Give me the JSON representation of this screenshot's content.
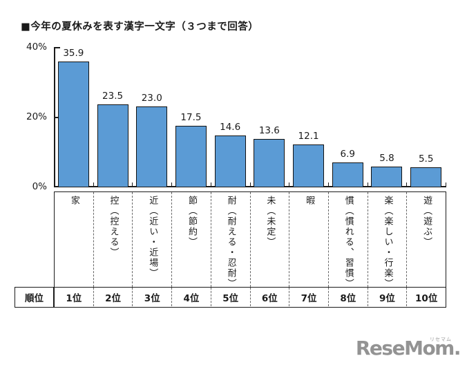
{
  "title": "■今年の夏休みを表す漢字一文字（３つまで回答）",
  "chart_data": {
    "type": "bar",
    "title": "今年の夏休みを表す漢字一文字（３つまで回答）",
    "categories": [
      "家",
      "控（控える）",
      "近（近い・近場）",
      "節（節約）",
      "耐（耐える・忍耐）",
      "未（未定）",
      "暇",
      "慣（慣れる、習慣）",
      "楽（楽しい・行楽）",
      "遊（遊ぶ）"
    ],
    "values": [
      35.9,
      23.5,
      23.0,
      17.5,
      14.6,
      13.6,
      12.1,
      6.9,
      5.8,
      5.5
    ],
    "rank_header": "順位",
    "ranks": [
      "1位",
      "2位",
      "3位",
      "4位",
      "5位",
      "6位",
      "7位",
      "8位",
      "9位",
      "10位"
    ],
    "yticks": [
      "40%",
      "20%",
      "0%"
    ],
    "ylim": [
      0,
      40
    ],
    "grid": false,
    "legend": false,
    "bar_color": "#5B9BD5",
    "bar_border_color": "#111111"
  },
  "logo": {
    "text": "ReseMom.",
    "ruby": "リセマム"
  }
}
